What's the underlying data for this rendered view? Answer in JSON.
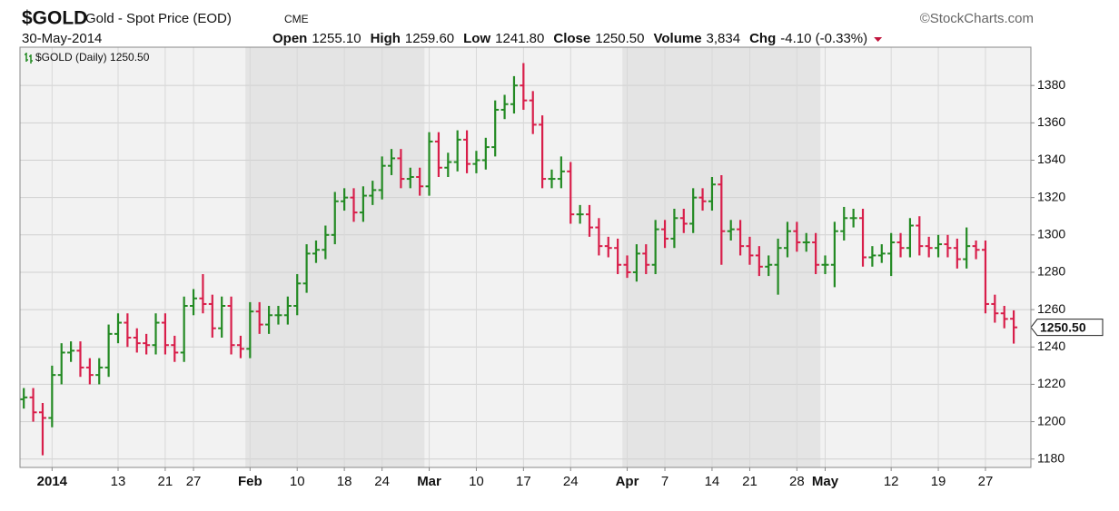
{
  "header": {
    "symbol": "$GOLD",
    "name": "Gold - Spot Price (EOD)",
    "exchange": "CME",
    "brand": "©StockCharts.com",
    "date": "30-May-2014",
    "fields": [
      {
        "label": "Open",
        "value": "1255.10"
      },
      {
        "label": "High",
        "value": "1259.60"
      },
      {
        "label": "Low",
        "value": "1241.80"
      },
      {
        "label": "Close",
        "value": "1250.50"
      },
      {
        "label": "Volume",
        "value": "3,834"
      },
      {
        "label": "Chg",
        "value": "-4.10 (-0.33%)"
      }
    ]
  },
  "chart_data": {
    "type": "ohlc",
    "categories": [
      null,
      null,
      null,
      "2014",
      null,
      null,
      null,
      null,
      null,
      null,
      "13",
      null,
      null,
      null,
      null,
      "21",
      null,
      null,
      "27",
      null,
      null,
      null,
      null,
      null,
      "Feb",
      null,
      null,
      null,
      null,
      "10",
      null,
      null,
      null,
      null,
      "18",
      null,
      null,
      null,
      "24",
      null,
      null,
      null,
      null,
      "Mar",
      null,
      null,
      null,
      null,
      "10",
      null,
      null,
      null,
      null,
      "17",
      null,
      null,
      null,
      null,
      "24",
      null,
      null,
      null,
      null,
      null,
      "Apr",
      null,
      null,
      null,
      "7",
      null,
      null,
      null,
      null,
      "14",
      null,
      null,
      null,
      "21",
      null,
      null,
      null,
      null,
      "28",
      null,
      null,
      "May",
      null,
      null,
      null,
      null,
      null,
      null,
      "12",
      null,
      null,
      null,
      null,
      "19",
      null,
      null,
      null,
      null,
      "27",
      null,
      null,
      null
    ],
    "series": [
      {
        "name": "$GOLD (Daily) 1250.50",
        "open": [
          1212,
          1213,
          1205,
          1202,
          1225,
          1237,
          1238,
          1229,
          1225,
          1229,
          1247,
          1253,
          1245,
          1242,
          1241,
          1253,
          1241,
          1237,
          1262,
          1266,
          1263,
          1250,
          1262,
          1241,
          1239,
          1259,
          1252,
          1257,
          1257,
          1262,
          1274,
          1290,
          1292,
          1300,
          1318,
          1320,
          1312,
          1321,
          1324,
          1337,
          1341,
          1330,
          1331,
          1326,
          1350,
          1336,
          1339,
          1351,
          1338,
          1340,
          1347,
          1367,
          1370,
          1380,
          1372,
          1359,
          1330,
          1330,
          1334,
          1311,
          1311,
          1304,
          1294,
          1293,
          1284,
          1280,
          1290,
          1284,
          1303,
          1298,
          1309,
          1306,
          1320,
          1318,
          1327,
          1302,
          1303,
          1294,
          1289,
          1283,
          1284,
          1293,
          1302,
          1296,
          1296,
          1284,
          1284,
          1302,
          1309,
          1309,
          1288,
          1289,
          1290,
          1296,
          1293,
          1305,
          1294,
          1293,
          1295,
          1293,
          1287,
          1294,
          1292,
          1263,
          1258,
          1255.1
        ],
        "high": [
          1218,
          1218,
          1210,
          1230,
          1242,
          1243,
          1243,
          1234,
          1234,
          1252,
          1258,
          1258,
          1250,
          1247,
          1258,
          1258,
          1246,
          1267,
          1271,
          1279,
          1268,
          1267,
          1267,
          1246,
          1264,
          1264,
          1262,
          1262,
          1267,
          1279,
          1295,
          1297,
          1305,
          1323,
          1325,
          1325,
          1326,
          1329,
          1342,
          1346,
          1346,
          1336,
          1336,
          1355,
          1355,
          1344,
          1356,
          1356,
          1345,
          1352,
          1372,
          1375,
          1385,
          1392,
          1377,
          1364,
          1335,
          1342,
          1339,
          1316,
          1316,
          1309,
          1299,
          1298,
          1289,
          1295,
          1295,
          1308,
          1308,
          1314,
          1314,
          1325,
          1325,
          1331,
          1332,
          1308,
          1308,
          1299,
          1294,
          1289,
          1298,
          1307,
          1307,
          1301,
          1301,
          1289,
          1307,
          1315,
          1314,
          1314,
          1294,
          1295,
          1301,
          1301,
          1309,
          1310,
          1299,
          1300,
          1300,
          1298,
          1304,
          1297,
          1297,
          1268,
          1262,
          1259.6
        ],
        "low": [
          1207,
          1200,
          1182,
          1197,
          1220,
          1232,
          1224,
          1220,
          1220,
          1224,
          1242,
          1240,
          1237,
          1236,
          1236,
          1236,
          1232,
          1232,
          1257,
          1258,
          1245,
          1245,
          1236,
          1234,
          1234,
          1247,
          1247,
          1252,
          1252,
          1257,
          1269,
          1285,
          1287,
          1295,
          1313,
          1307,
          1307,
          1316,
          1319,
          1332,
          1325,
          1325,
          1321,
          1321,
          1331,
          1331,
          1334,
          1333,
          1333,
          1335,
          1342,
          1362,
          1365,
          1367,
          1354,
          1325,
          1325,
          1325,
          1306,
          1306,
          1299,
          1289,
          1288,
          1279,
          1277,
          1275,
          1279,
          1279,
          1293,
          1293,
          1301,
          1301,
          1313,
          1313,
          1284,
          1297,
          1289,
          1284,
          1278,
          1278,
          1268,
          1288,
          1291,
          1291,
          1279,
          1279,
          1272,
          1297,
          1304,
          1283,
          1283,
          1285,
          1278,
          1288,
          1288,
          1289,
          1288,
          1288,
          1288,
          1282,
          1282,
          1287,
          1258,
          1253,
          1250,
          1241.8
        ],
        "close": [
          1213,
          1205,
          1202,
          1225,
          1237,
          1238,
          1229,
          1225,
          1229,
          1247,
          1253,
          1245,
          1242,
          1241,
          1253,
          1241,
          1237,
          1262,
          1266,
          1263,
          1250,
          1262,
          1241,
          1239,
          1259,
          1252,
          1257,
          1257,
          1262,
          1274,
          1290,
          1292,
          1300,
          1318,
          1320,
          1312,
          1321,
          1324,
          1337,
          1341,
          1330,
          1331,
          1326,
          1350,
          1336,
          1339,
          1351,
          1338,
          1340,
          1347,
          1367,
          1370,
          1380,
          1372,
          1359,
          1330,
          1330,
          1334,
          1311,
          1311,
          1304,
          1294,
          1293,
          1284,
          1280,
          1290,
          1284,
          1303,
          1298,
          1309,
          1306,
          1320,
          1318,
          1327,
          1302,
          1303,
          1294,
          1289,
          1283,
          1284,
          1293,
          1302,
          1296,
          1296,
          1284,
          1284,
          1302,
          1309,
          1309,
          1288,
          1289,
          1290,
          1296,
          1293,
          1305,
          1294,
          1293,
          1295,
          1293,
          1287,
          1294,
          1292,
          1263,
          1258,
          1255,
          1250.5
        ]
      }
    ],
    "up_color": "#238a23",
    "down_color": "#d81e4a",
    "ylim": [
      1175.5,
      1400.5
    ],
    "yticks": [
      1180,
      1200,
      1220,
      1240,
      1260,
      1280,
      1300,
      1320,
      1340,
      1360,
      1380
    ],
    "grid": true,
    "last_label": "1250.50"
  }
}
